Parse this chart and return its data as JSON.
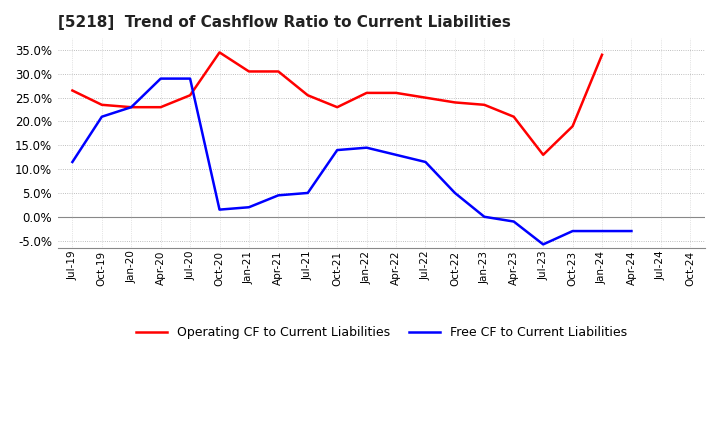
{
  "title": "[5218]  Trend of Cashflow Ratio to Current Liabilities",
  "title_fontsize": 11,
  "x_labels": [
    "Jul-19",
    "Oct-19",
    "Jan-20",
    "Apr-20",
    "Jul-20",
    "Oct-20",
    "Jan-21",
    "Apr-21",
    "Jul-21",
    "Oct-21",
    "Jan-22",
    "Apr-22",
    "Jul-22",
    "Oct-22",
    "Jan-23",
    "Apr-23",
    "Jul-23",
    "Oct-23",
    "Jan-24",
    "Apr-24",
    "Jul-24",
    "Oct-24"
  ],
  "ylim": [
    -0.065,
    0.375
  ],
  "yticks": [
    -0.05,
    0.0,
    0.05,
    0.1,
    0.15,
    0.2,
    0.25,
    0.3,
    0.35
  ],
  "operating_cf": [
    0.265,
    0.235,
    0.23,
    0.23,
    0.255,
    0.345,
    0.305,
    0.305,
    0.255,
    0.23,
    0.26,
    0.26,
    0.25,
    0.24,
    0.235,
    0.21,
    0.13,
    0.19,
    0.34,
    null,
    null,
    null
  ],
  "free_cf": [
    0.115,
    0.21,
    0.23,
    0.29,
    0.29,
    0.015,
    0.02,
    0.045,
    0.05,
    0.14,
    0.145,
    0.13,
    0.115,
    0.05,
    0.0,
    -0.01,
    -0.058,
    -0.03,
    -0.03,
    -0.03,
    null,
    null
  ],
  "operating_color": "#ff0000",
  "free_color": "#0000ff",
  "bg_color": "#ffffff",
  "plot_bg_color": "#ffffff",
  "grid_color": "#aaaaaa",
  "legend_labels": [
    "Operating CF to Current Liabilities",
    "Free CF to Current Liabilities"
  ]
}
